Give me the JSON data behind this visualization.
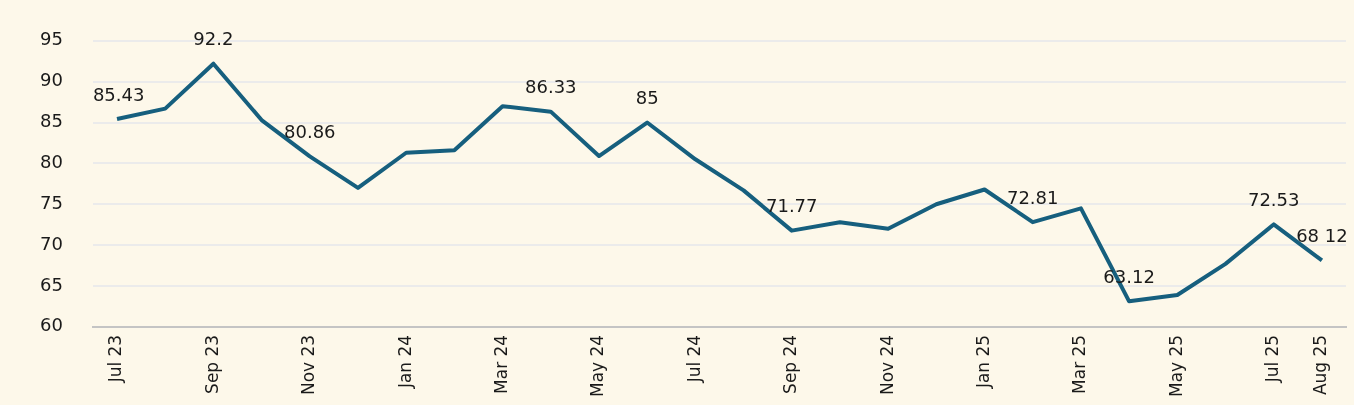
{
  "chart_data": {
    "type": "line",
    "categories": [
      "Jul 23",
      null,
      "Sep 23",
      null,
      "Nov 23",
      null,
      "Jan 24",
      null,
      "Mar 24",
      null,
      "May 24",
      null,
      "Jul 24",
      null,
      "Sep 24",
      null,
      "Nov 24",
      null,
      "Jan 25",
      null,
      "Mar 25",
      null,
      "May 25",
      null,
      "Jul 25",
      "Aug 25"
    ],
    "series": [
      {
        "color": "#165f7e",
        "values": [
          85.43,
          86.7,
          92.2,
          85.3,
          80.86,
          77.0,
          81.3,
          81.6,
          87.0,
          86.33,
          80.9,
          85,
          80.5,
          76.7,
          71.77,
          72.8,
          72.0,
          75.0,
          76.8,
          72.81,
          74.5,
          63.12,
          63.9,
          67.7,
          72.53,
          68.12
        ],
        "value_labels": [
          "85.43",
          null,
          "92.2",
          null,
          "80.86",
          null,
          null,
          null,
          null,
          "86.33",
          null,
          "85",
          null,
          null,
          "71.77",
          null,
          null,
          null,
          null,
          "72.81",
          null,
          "63.12",
          null,
          null,
          "72.53",
          "68 12"
        ]
      }
    ],
    "ylim": [
      60,
      95
    ],
    "yticks": [
      60,
      65,
      70,
      75,
      80,
      85,
      90,
      95
    ],
    "grid": "y",
    "legend": false,
    "marker": "none",
    "line_style": "solid"
  }
}
